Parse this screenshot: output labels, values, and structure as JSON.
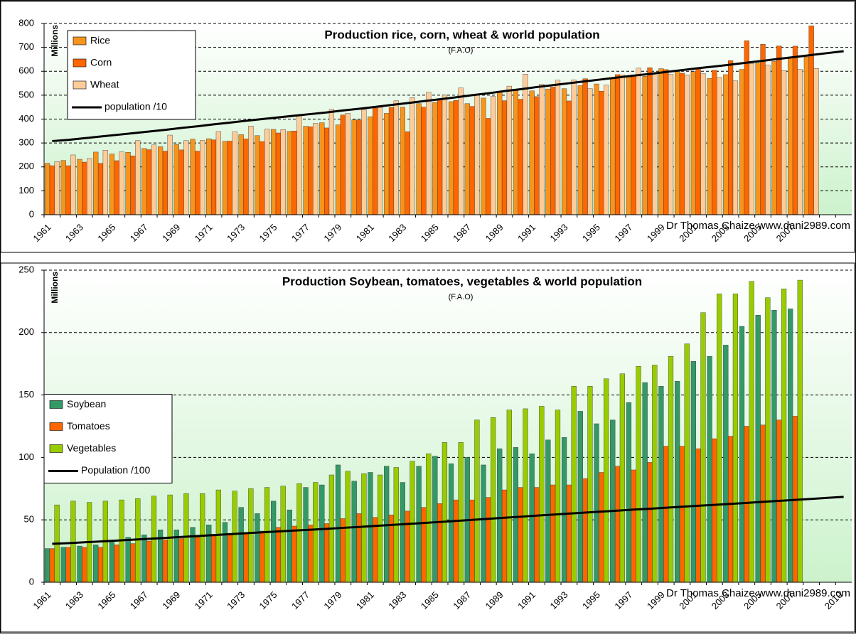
{
  "chart_data": [
    {
      "type": "bar",
      "title": "Production rice, corn, wheat & world population",
      "subtitle": "(F.A.O)",
      "y_label": "Millions",
      "annotation": "Dr Thomas Chaize www.dani2989.com",
      "legend": "upper left",
      "grid": true,
      "categories": [
        "1961",
        null,
        "1963",
        null,
        "1965",
        null,
        "1967",
        null,
        "1969",
        null,
        "1971",
        null,
        "1973",
        null,
        "1975",
        null,
        "1977",
        null,
        "1979",
        null,
        "1981",
        null,
        "1983",
        null,
        "1985",
        null,
        "1987",
        null,
        "1989",
        null,
        "1991",
        null,
        "1993",
        null,
        "1995",
        null,
        "1997",
        null,
        "1999",
        null,
        "2001",
        null,
        "2003",
        null,
        "2005",
        null,
        "2007",
        null,
        null,
        null
      ],
      "ylim": [
        0,
        800
      ],
      "yticks": [
        0,
        100,
        200,
        300,
        400,
        500,
        600,
        700,
        800
      ],
      "series": [
        {
          "name": "Rice",
          "color": "#f7941d",
          "values": [
            215,
            227,
            232,
            262,
            254,
            261,
            277,
            285,
            294,
            316,
            318,
            307,
            335,
            331,
            357,
            349,
            370,
            385,
            376,
            397,
            410,
            424,
            450,
            465,
            469,
            473,
            465,
            488,
            517,
            519,
            518,
            526,
            527,
            540,
            547,
            569,
            577,
            579,
            611,
            599,
            599,
            570,
            586,
            608,
            634,
            641,
            657,
            660,
            null,
            null
          ]
        },
        {
          "name": "Corn",
          "color": "#ff6600",
          "values": [
            205,
            205,
            220,
            215,
            226,
            246,
            272,
            266,
            271,
            266,
            313,
            308,
            317,
            306,
            342,
            350,
            368,
            363,
            417,
            396,
            446,
            449,
            347,
            450,
            485,
            478,
            453,
            403,
            477,
            483,
            494,
            534,
            476,
            569,
            517,
            586,
            585,
            615,
            607,
            592,
            615,
            604,
            645,
            728,
            713,
            706,
            705,
            790,
            null,
            null
          ]
        },
        {
          "name": "Wheat",
          "color": "#ffcc99",
          "values": [
            222,
            250,
            235,
            270,
            263,
            310,
            292,
            333,
            310,
            311,
            348,
            347,
            371,
            358,
            356,
            419,
            382,
            441,
            424,
            440,
            449,
            477,
            490,
            512,
            500,
            530,
            504,
            495,
            538,
            588,
            546,
            563,
            564,
            527,
            542,
            585,
            613,
            593,
            587,
            585,
            590,
            574,
            560,
            633,
            626,
            603,
            608,
            612,
            null,
            null
          ]
        },
        {
          "name": "population /10",
          "color": "#000000",
          "line": true,
          "values": [
            308,
            313,
            320,
            327,
            334,
            341,
            348,
            355,
            363,
            370,
            378,
            385,
            393,
            400,
            407,
            414,
            421,
            428,
            436,
            443,
            451,
            459,
            467,
            475,
            483,
            491,
            500,
            508,
            517,
            525,
            534,
            542,
            550,
            558,
            566,
            574,
            582,
            589,
            597,
            605,
            613,
            620,
            628,
            636,
            644,
            652,
            660,
            668,
            676,
            684
          ]
        }
      ]
    },
    {
      "type": "bar",
      "title": "Production Soybean, tomatoes, vegetables & world  population",
      "subtitle": "(F.A.O)",
      "y_label": "Millions",
      "annotation": "Dr Thomas Chaize www.dani2989.com",
      "legend": "center left",
      "grid": true,
      "categories": [
        "1961",
        null,
        "1963",
        null,
        "1965",
        null,
        "1967",
        null,
        "1969",
        null,
        "1971",
        null,
        "1973",
        null,
        "1975",
        null,
        "1977",
        null,
        "1979",
        null,
        "1981",
        null,
        "1983",
        null,
        "1985",
        null,
        "1987",
        null,
        "1989",
        null,
        "1991",
        null,
        "1993",
        null,
        "1995",
        null,
        "1997",
        null,
        "1999",
        null,
        "2001",
        null,
        "2003",
        null,
        "2005",
        null,
        "2007",
        null,
        null,
        "2010"
      ],
      "ylim": [
        0,
        250
      ],
      "yticks": [
        0,
        50,
        100,
        150,
        200,
        250
      ],
      "series": [
        {
          "name": "Soybean",
          "color": "#339966",
          "values": [
            27,
            28,
            29,
            30,
            32,
            36,
            38,
            42,
            42,
            44,
            46,
            48,
            60,
            55,
            65,
            58,
            76,
            78,
            94,
            81,
            88,
            93,
            80,
            93,
            101,
            95,
            100,
            94,
            107,
            108,
            103,
            114,
            116,
            137,
            127,
            130,
            144,
            160,
            157,
            161,
            177,
            181,
            190,
            205,
            214,
            218,
            219,
            null,
            null,
            null
          ]
        },
        {
          "name": "Tomatoes",
          "color": "#ff6600",
          "values": [
            27,
            28,
            28,
            28,
            30,
            31,
            33,
            34,
            35,
            36,
            37,
            38,
            40,
            41,
            44,
            45,
            46,
            47,
            51,
            55,
            52,
            54,
            57,
            60,
            63,
            66,
            66,
            68,
            74,
            76,
            76,
            78,
            78,
            83,
            88,
            93,
            90,
            96,
            109,
            109,
            107,
            115,
            117,
            125,
            126,
            130,
            133,
            null,
            null,
            null
          ]
        },
        {
          "name": "Vegetables",
          "color": "#99cc00",
          "values": [
            62,
            65,
            64,
            65,
            66,
            67,
            69,
            70,
            71,
            71,
            74,
            73,
            75,
            76,
            77,
            79,
            80,
            86,
            89,
            87,
            86,
            92,
            97,
            103,
            112,
            112,
            130,
            132,
            138,
            139,
            141,
            138,
            157,
            157,
            163,
            167,
            173,
            174,
            181,
            191,
            216,
            231,
            231,
            241,
            228,
            235,
            242,
            null,
            null,
            null
          ]
        },
        {
          "name": "Population /100",
          "color": "#000000",
          "line": true,
          "values": [
            30.8,
            31.3,
            32,
            32.7,
            33.4,
            34.1,
            34.8,
            35.5,
            36.3,
            37,
            37.8,
            38.5,
            39.3,
            40,
            40.7,
            41.4,
            42.1,
            42.8,
            43.6,
            44.3,
            45.1,
            45.9,
            46.7,
            47.5,
            48.3,
            49.1,
            50,
            50.8,
            51.7,
            52.5,
            53.4,
            54.2,
            55,
            55.8,
            56.6,
            57.4,
            58.2,
            58.9,
            59.7,
            60.5,
            61.3,
            62,
            62.8,
            63.6,
            64.4,
            65.2,
            66,
            66.8,
            67.6,
            68.4
          ]
        }
      ]
    }
  ]
}
